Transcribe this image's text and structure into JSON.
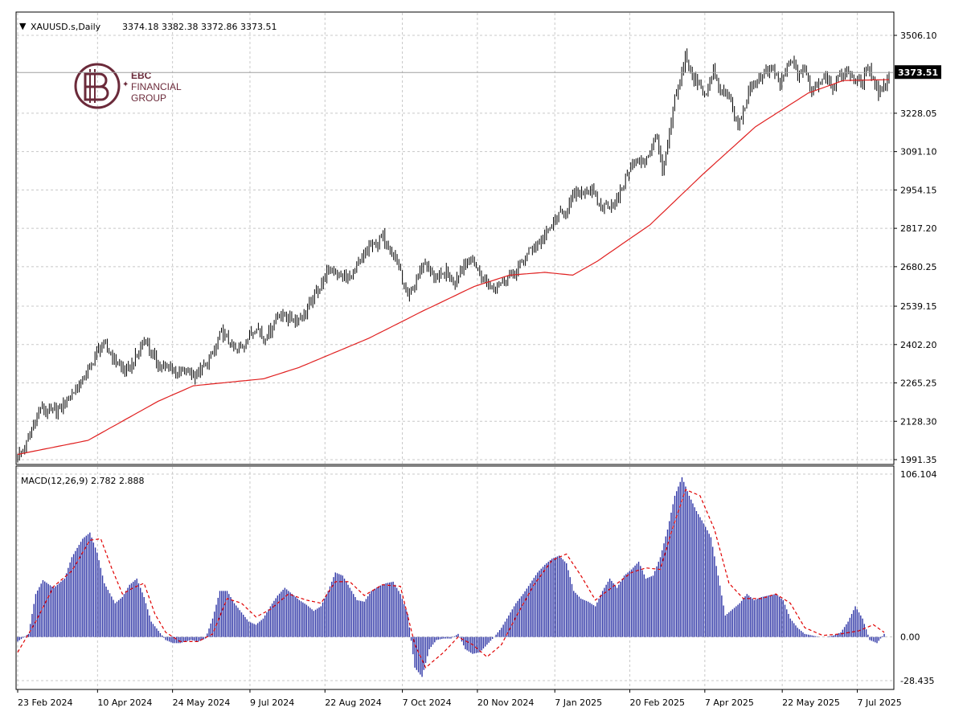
{
  "header": {
    "symbol": "XAUUSD.s,Daily",
    "ohlc": "3374.18 3382.38 3372.86 3373.51"
  },
  "logo": {
    "line1": "EBC",
    "line2": "FINANCIAL",
    "line3": "GROUP",
    "color": "#6b2a3a"
  },
  "price_badge": "3373.51",
  "chart_data": [
    {
      "type": "candlestick",
      "title": "XAUUSD.s,Daily",
      "ylim": [
        1991.35,
        3560
      ],
      "y_ticks": [
        "3506.10",
        "3228.05",
        "3091.10",
        "2954.15",
        "2817.20",
        "2680.25",
        "2539.15",
        "2402.20",
        "2265.25",
        "2128.30",
        "1991.35"
      ],
      "y_tick_values": [
        3506.1,
        3228.05,
        3091.1,
        2954.15,
        2817.2,
        2680.25,
        2539.15,
        2402.2,
        2265.25,
        2128.3,
        1991.35
      ],
      "x_ticks": [
        "23 Feb 2024",
        "10 Apr 2024",
        "24 May 2024",
        "9 Jul 2024",
        "22 Aug 2024",
        "7 Oct 2024",
        "20 Nov 2024",
        "7 Jan 2025",
        "20 Feb 2025",
        "7 Apr 2025",
        "22 May 2025",
        "7 Jul 2025"
      ],
      "last_price": 3373.51,
      "close_path": [
        [
          0,
          2005
        ],
        [
          4,
          2030
        ],
        [
          7,
          2080
        ],
        [
          10,
          2130
        ],
        [
          13,
          2175
        ],
        [
          18,
          2160
        ],
        [
          24,
          2170
        ],
        [
          30,
          2220
        ],
        [
          36,
          2265
        ],
        [
          42,
          2330
        ],
        [
          46,
          2390
        ],
        [
          50,
          2395
        ],
        [
          54,
          2360
        ],
        [
          58,
          2325
        ],
        [
          62,
          2305
        ],
        [
          66,
          2340
        ],
        [
          70,
          2395
        ],
        [
          73,
          2420
        ],
        [
          76,
          2370
        ],
        [
          80,
          2335
        ],
        [
          84,
          2315
        ],
        [
          88,
          2320
        ],
        [
          92,
          2300
        ],
        [
          96,
          2310
        ],
        [
          100,
          2290
        ],
        [
          104,
          2310
        ],
        [
          108,
          2335
        ],
        [
          112,
          2380
        ],
        [
          116,
          2450
        ],
        [
          120,
          2410
        ],
        [
          124,
          2380
        ],
        [
          128,
          2395
        ],
        [
          132,
          2435
        ],
        [
          136,
          2470
        ],
        [
          140,
          2425
        ],
        [
          144,
          2455
        ],
        [
          148,
          2510
        ],
        [
          152,
          2505
        ],
        [
          156,
          2490
        ],
        [
          160,
          2495
        ],
        [
          164,
          2520
        ],
        [
          168,
          2565
        ],
        [
          172,
          2610
        ],
        [
          176,
          2660
        ],
        [
          180,
          2665
        ],
        [
          184,
          2650
        ],
        [
          188,
          2635
        ],
        [
          192,
          2665
        ],
        [
          196,
          2705
        ],
        [
          200,
          2750
        ],
        [
          204,
          2760
        ],
        [
          208,
          2785
        ],
        [
          212,
          2745
        ],
        [
          216,
          2700
        ],
        [
          220,
          2605
        ],
        [
          222,
          2560
        ],
        [
          225,
          2600
        ],
        [
          228,
          2655
        ],
        [
          232,
          2700
        ],
        [
          236,
          2645
        ],
        [
          240,
          2640
        ],
        [
          244,
          2660
        ],
        [
          248,
          2625
        ],
        [
          252,
          2670
        ],
        [
          256,
          2705
        ],
        [
          260,
          2690
        ],
        [
          264,
          2640
        ],
        [
          268,
          2620
        ],
        [
          272,
          2610
        ],
        [
          276,
          2630
        ],
        [
          280,
          2650
        ],
        [
          284,
          2665
        ],
        [
          288,
          2705
        ],
        [
          292,
          2745
        ],
        [
          296,
          2760
        ],
        [
          300,
          2790
        ],
        [
          304,
          2830
        ],
        [
          308,
          2860
        ],
        [
          312,
          2880
        ],
        [
          316,
          2930
        ],
        [
          320,
          2945
        ],
        [
          324,
          2955
        ],
        [
          328,
          2940
        ],
        [
          332,
          2890
        ],
        [
          336,
          2905
        ],
        [
          340,
          2900
        ],
        [
          344,
          2960
        ],
        [
          348,
          3030
        ],
        [
          352,
          3060
        ],
        [
          356,
          3050
        ],
        [
          360,
          3090
        ],
        [
          364,
          3150
        ],
        [
          367,
          3005
        ],
        [
          370,
          3110
        ],
        [
          374,
          3280
        ],
        [
          377,
          3330
        ],
        [
          380,
          3440
        ],
        [
          384,
          3350
        ],
        [
          388,
          3340
        ],
        [
          392,
          3290
        ],
        [
          396,
          3380
        ],
        [
          400,
          3300
        ],
        [
          404,
          3310
        ],
        [
          407,
          3240
        ],
        [
          410,
          3180
        ],
        [
          414,
          3255
        ],
        [
          418,
          3330
        ],
        [
          422,
          3350
        ],
        [
          426,
          3375
        ],
        [
          430,
          3390
        ],
        [
          434,
          3330
        ],
        [
          438,
          3395
        ],
        [
          441,
          3420
        ],
        [
          444,
          3365
        ],
        [
          448,
          3385
        ],
        [
          452,
          3310
        ],
        [
          456,
          3340
        ],
        [
          460,
          3365
        ],
        [
          464,
          3325
        ],
        [
          468,
          3355
        ],
        [
          472,
          3380
        ],
        [
          476,
          3350
        ],
        [
          480,
          3330
        ],
        [
          484,
          3390
        ],
        [
          487,
          3360
        ],
        [
          490,
          3300
        ],
        [
          494,
          3335
        ],
        [
          496,
          3373.51
        ]
      ],
      "ma_path": [
        [
          0,
          2010
        ],
        [
          40,
          2060
        ],
        [
          80,
          2200
        ],
        [
          100,
          2255
        ],
        [
          140,
          2280
        ],
        [
          160,
          2320
        ],
        [
          200,
          2425
        ],
        [
          230,
          2520
        ],
        [
          260,
          2610
        ],
        [
          280,
          2650
        ],
        [
          300,
          2660
        ],
        [
          316,
          2650
        ],
        [
          330,
          2700
        ],
        [
          360,
          2830
        ],
        [
          390,
          3010
        ],
        [
          420,
          3180
        ],
        [
          450,
          3300
        ],
        [
          470,
          3345
        ],
        [
          496,
          3348
        ]
      ]
    },
    {
      "type": "macd",
      "title": "MACD(12,26,9) 2.782 2.888",
      "ylim": [
        -28.435,
        106.104
      ],
      "y_ticks": [
        "106.104",
        "0.00",
        "-28.435"
      ],
      "y_tick_values": [
        106.104,
        0.0,
        -28.435
      ],
      "macd_value": 2.782,
      "signal_value": 2.888,
      "hist_color": "#2e35a6",
      "signal_color": "#e00000",
      "hist_path": [
        [
          0,
          -3
        ],
        [
          6,
          2
        ],
        [
          10,
          28
        ],
        [
          14,
          37
        ],
        [
          20,
          32
        ],
        [
          26,
          38
        ],
        [
          30,
          52
        ],
        [
          36,
          64
        ],
        [
          40,
          68
        ],
        [
          44,
          55
        ],
        [
          48,
          35
        ],
        [
          54,
          22
        ],
        [
          58,
          26
        ],
        [
          62,
          34
        ],
        [
          66,
          38
        ],
        [
          70,
          26
        ],
        [
          74,
          10
        ],
        [
          78,
          4
        ],
        [
          82,
          -2
        ],
        [
          86,
          -4
        ],
        [
          90,
          -4
        ],
        [
          96,
          -2
        ],
        [
          100,
          -3
        ],
        [
          104,
          -1
        ],
        [
          108,
          12
        ],
        [
          112,
          30
        ],
        [
          116,
          30
        ],
        [
          120,
          22
        ],
        [
          124,
          16
        ],
        [
          128,
          10
        ],
        [
          132,
          8
        ],
        [
          136,
          12
        ],
        [
          140,
          20
        ],
        [
          144,
          27
        ],
        [
          148,
          32
        ],
        [
          152,
          28
        ],
        [
          156,
          24
        ],
        [
          160,
          21
        ],
        [
          164,
          17
        ],
        [
          168,
          20
        ],
        [
          172,
          30
        ],
        [
          176,
          42
        ],
        [
          180,
          40
        ],
        [
          184,
          32
        ],
        [
          188,
          24
        ],
        [
          192,
          23
        ],
        [
          196,
          30
        ],
        [
          200,
          33
        ],
        [
          204,
          35
        ],
        [
          208,
          36
        ],
        [
          212,
          28
        ],
        [
          216,
          15
        ],
        [
          220,
          -20
        ],
        [
          224,
          -26
        ],
        [
          228,
          -8
        ],
        [
          232,
          -2
        ],
        [
          236,
          -1
        ],
        [
          240,
          -1
        ],
        [
          244,
          2
        ],
        [
          248,
          -8
        ],
        [
          252,
          -11
        ],
        [
          256,
          -10
        ],
        [
          260,
          -5
        ],
        [
          264,
          0
        ],
        [
          268,
          6
        ],
        [
          272,
          14
        ],
        [
          276,
          22
        ],
        [
          280,
          28
        ],
        [
          284,
          35
        ],
        [
          288,
          42
        ],
        [
          292,
          47
        ],
        [
          296,
          51
        ],
        [
          300,
          53
        ],
        [
          304,
          48
        ],
        [
          308,
          30
        ],
        [
          312,
          25
        ],
        [
          316,
          23
        ],
        [
          320,
          20
        ],
        [
          324,
          30
        ],
        [
          328,
          38
        ],
        [
          332,
          32
        ],
        [
          336,
          40
        ],
        [
          340,
          44
        ],
        [
          344,
          49
        ],
        [
          348,
          38
        ],
        [
          352,
          40
        ],
        [
          356,
          52
        ],
        [
          360,
          70
        ],
        [
          364,
          92
        ],
        [
          368,
          104
        ],
        [
          372,
          92
        ],
        [
          376,
          82
        ],
        [
          380,
          74
        ],
        [
          384,
          65
        ],
        [
          388,
          40
        ],
        [
          392,
          14
        ],
        [
          396,
          18
        ],
        [
          400,
          22
        ],
        [
          404,
          28
        ],
        [
          408,
          24
        ],
        [
          412,
          26
        ],
        [
          416,
          27
        ],
        [
          420,
          28
        ],
        [
          424,
          24
        ],
        [
          428,
          12
        ],
        [
          432,
          6
        ],
        [
          436,
          2
        ],
        [
          440,
          1
        ],
        [
          444,
          0
        ],
        [
          448,
          0
        ],
        [
          452,
          1
        ],
        [
          456,
          3
        ],
        [
          460,
          10
        ],
        [
          464,
          20
        ],
        [
          468,
          12
        ],
        [
          472,
          -2
        ],
        [
          476,
          -4
        ],
        [
          480,
          2
        ]
      ],
      "signal_path": [
        [
          0,
          -10
        ],
        [
          10,
          10
        ],
        [
          20,
          33
        ],
        [
          30,
          43
        ],
        [
          40,
          63
        ],
        [
          46,
          64
        ],
        [
          52,
          45
        ],
        [
          58,
          28
        ],
        [
          64,
          32
        ],
        [
          70,
          35
        ],
        [
          76,
          15
        ],
        [
          82,
          3
        ],
        [
          90,
          -3
        ],
        [
          100,
          -3
        ],
        [
          108,
          2
        ],
        [
          116,
          25
        ],
        [
          124,
          22
        ],
        [
          132,
          13
        ],
        [
          140,
          18
        ],
        [
          150,
          28
        ],
        [
          160,
          24
        ],
        [
          168,
          22
        ],
        [
          176,
          36
        ],
        [
          184,
          36
        ],
        [
          192,
          27
        ],
        [
          202,
          34
        ],
        [
          212,
          33
        ],
        [
          220,
          -5
        ],
        [
          226,
          -20
        ],
        [
          236,
          -10
        ],
        [
          244,
          0
        ],
        [
          252,
          -5
        ],
        [
          260,
          -13
        ],
        [
          268,
          -5
        ],
        [
          276,
          13
        ],
        [
          286,
          34
        ],
        [
          296,
          50
        ],
        [
          304,
          54
        ],
        [
          312,
          40
        ],
        [
          320,
          24
        ],
        [
          330,
          33
        ],
        [
          340,
          42
        ],
        [
          348,
          45
        ],
        [
          356,
          44
        ],
        [
          362,
          68
        ],
        [
          370,
          96
        ],
        [
          378,
          92
        ],
        [
          386,
          70
        ],
        [
          394,
          35
        ],
        [
          402,
          25
        ],
        [
          412,
          25
        ],
        [
          420,
          28
        ],
        [
          428,
          22
        ],
        [
          436,
          6
        ],
        [
          446,
          1
        ],
        [
          456,
          2
        ],
        [
          466,
          4
        ],
        [
          474,
          8
        ],
        [
          480,
          3
        ]
      ]
    }
  ]
}
